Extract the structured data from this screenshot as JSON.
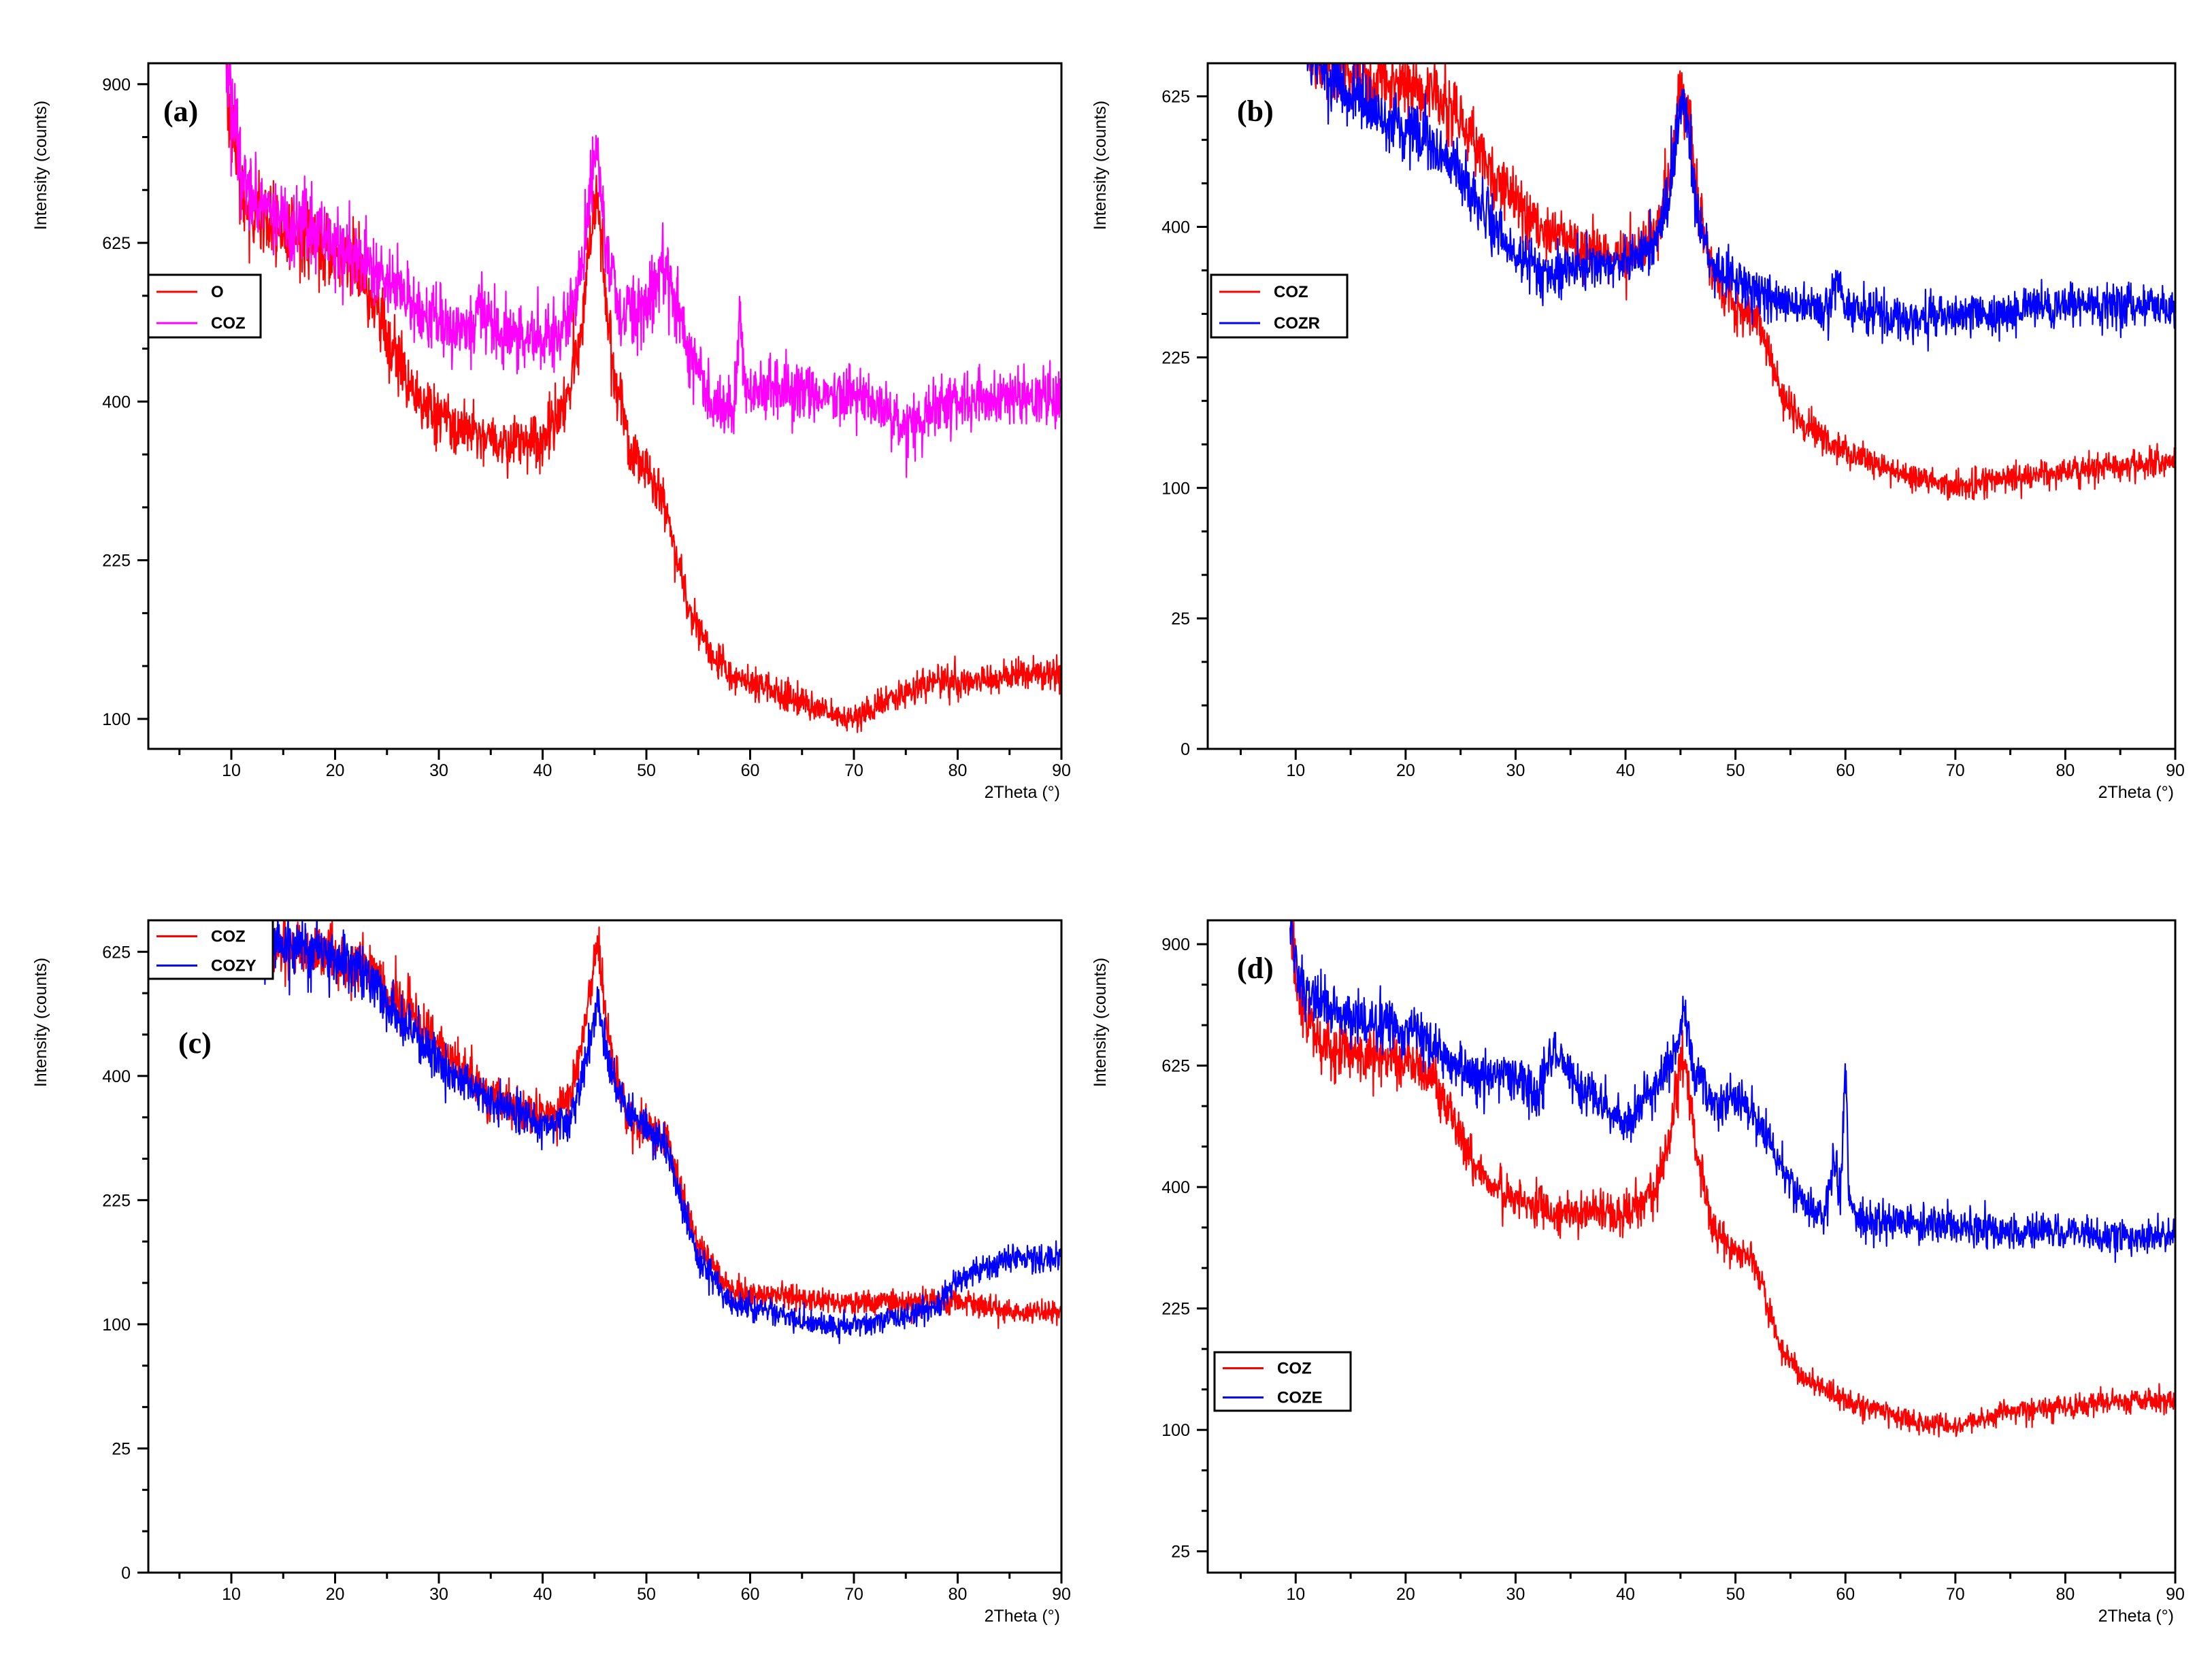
{
  "chart_data": [
    {
      "panel": "(a)",
      "type": "line",
      "xlabel": "2Theta (°)",
      "ylabel": "Intensity (counts)",
      "xlim": [
        2,
        90
      ],
      "ylim": [
        82,
        940
      ],
      "y_scale": "sqrt",
      "xticks": [
        10,
        20,
        30,
        40,
        50,
        60,
        70,
        80,
        90
      ],
      "yticks": [
        100,
        225,
        400,
        625,
        900
      ],
      "legend": {
        "position": "upper-left-mid",
        "entries": [
          "O",
          "COZ"
        ]
      },
      "grid": false,
      "series": [
        {
          "name": "O",
          "color": "#ff0000",
          "noise": 0.045,
          "x": [
            9.5,
            10,
            11,
            13,
            15,
            18,
            22,
            24,
            26,
            28,
            30,
            33,
            36,
            40,
            42,
            43.5,
            44.5,
            45.2,
            46,
            47,
            48.5,
            50,
            51.5,
            52.5,
            54,
            56,
            58,
            62,
            66,
            70,
            74,
            78,
            82,
            86,
            90
          ],
          "y": [
            940,
            820,
            700,
            650,
            640,
            625,
            590,
            530,
            450,
            400,
            380,
            360,
            350,
            355,
            390,
            470,
            620,
            700,
            560,
            420,
            340,
            320,
            290,
            250,
            180,
            150,
            130,
            120,
            108,
            100,
            115,
            125,
            125,
            130,
            130
          ]
        },
        {
          "name": "COZ",
          "color": "#ff00ff",
          "noise": 0.045,
          "x": [
            9.5,
            10,
            11,
            12,
            14,
            17,
            20,
            23,
            26,
            30,
            33,
            34,
            35,
            36,
            40,
            43,
            44.3,
            45.2,
            46,
            47.5,
            50,
            51.5,
            52.5,
            54,
            56,
            58.5,
            59,
            59.5,
            61,
            65,
            70,
            75,
            80,
            85,
            90
          ],
          "y": [
            940,
            860,
            750,
            700,
            670,
            650,
            625,
            590,
            550,
            510,
            490,
            540,
            500,
            490,
            480,
            520,
            650,
            790,
            640,
            520,
            520,
            590,
            560,
            470,
            400,
            390,
            520,
            410,
            420,
            410,
            410,
            370,
            400,
            410,
            400
          ]
        }
      ]
    },
    {
      "panel": "(b)",
      "type": "line",
      "xlabel": "2Theta (°)",
      "ylabel": "Intensity (counts)",
      "xlim": [
        2,
        90
      ],
      "ylim": [
        0,
        690
      ],
      "y_scale": "sqrt",
      "xticks": [
        10,
        20,
        30,
        40,
        50,
        60,
        70,
        80,
        90
      ],
      "yticks": [
        0,
        25,
        100,
        225,
        400,
        625
      ],
      "legend": {
        "position": "upper-left-mid",
        "entries": [
          "COZ",
          "COZR"
        ]
      },
      "grid": false,
      "series": [
        {
          "name": "COZ",
          "color": "#ff0000",
          "noise": 0.05,
          "x": [
            11,
            13,
            16,
            19,
            22,
            25,
            28,
            32,
            36,
            40,
            42.5,
            44,
            45,
            45.7,
            46.5,
            48,
            50,
            51.5,
            52.5,
            54,
            56,
            60,
            65,
            70,
            75,
            80,
            85,
            90
          ],
          "y": [
            710,
            690,
            660,
            650,
            640,
            580,
            480,
            400,
            370,
            350,
            380,
            470,
            640,
            600,
            450,
            330,
            285,
            280,
            250,
            190,
            155,
            130,
            110,
            100,
            108,
            112,
            118,
            122
          ]
        },
        {
          "name": "COZR",
          "color": "#0000ff",
          "noise": 0.05,
          "x": [
            11,
            13,
            16,
            19,
            22,
            25,
            28,
            30,
            33,
            36,
            40,
            42.5,
            44,
            45,
            45.7,
            46.5,
            48,
            50,
            52,
            55,
            58.5,
            59.2,
            60,
            62,
            65,
            70,
            75,
            80,
            85,
            90
          ],
          "y": [
            710,
            660,
            610,
            580,
            540,
            480,
            400,
            360,
            330,
            340,
            350,
            370,
            450,
            620,
            570,
            420,
            340,
            320,
            305,
            290,
            280,
            330,
            285,
            280,
            270,
            275,
            280,
            290,
            290,
            285
          ]
        }
      ]
    },
    {
      "panel": "(c)",
      "type": "line",
      "xlabel": "2Theta (°)",
      "ylabel": "Intensity (counts)",
      "xlim": [
        2,
        90
      ],
      "ylim": [
        0,
        690
      ],
      "y_scale": "sqrt",
      "xticks": [
        10,
        20,
        30,
        40,
        50,
        60,
        70,
        80,
        90
      ],
      "yticks": [
        0,
        25,
        100,
        225,
        400,
        625
      ],
      "legend": {
        "position": "top-left",
        "entries": [
          "COZ",
          "COZY"
        ]
      },
      "grid": false,
      "series": [
        {
          "name": "COZ",
          "color": "#ff0000",
          "noise": 0.045,
          "x": [
            13,
            16,
            20,
            23,
            26,
            30,
            34,
            38,
            41,
            43,
            44.3,
            45.2,
            46,
            47,
            48.5,
            50,
            52,
            53,
            55,
            58,
            62,
            66,
            70,
            74,
            78,
            82,
            86,
            90
          ],
          "y": [
            640,
            630,
            610,
            600,
            530,
            450,
            380,
            340,
            340,
            380,
            520,
            640,
            520,
            400,
            330,
            320,
            300,
            250,
            170,
            130,
            125,
            120,
            118,
            118,
            120,
            115,
            110,
            110
          ]
        },
        {
          "name": "COZY",
          "color": "#0000ff",
          "noise": 0.045,
          "x": [
            13,
            16,
            20,
            23,
            26,
            30,
            34,
            38,
            41,
            43,
            44.3,
            45.2,
            46,
            47,
            48.5,
            50,
            52,
            53,
            55,
            58,
            62,
            66,
            70,
            74,
            78,
            80,
            82,
            86,
            90
          ],
          "y": [
            640,
            640,
            610,
            590,
            500,
            420,
            370,
            340,
            320,
            340,
            440,
            520,
            450,
            380,
            340,
            320,
            290,
            240,
            160,
            120,
            110,
            100,
            100,
            105,
            115,
            140,
            150,
            160,
            160
          ]
        }
      ]
    },
    {
      "panel": "(d)",
      "type": "line",
      "xlabel": "2Theta (°)",
      "ylabel": "Intensity (counts)",
      "xlim": [
        2,
        90
      ],
      "ylim": [
        17,
        960
      ],
      "y_scale": "sqrt",
      "xticks": [
        10,
        20,
        30,
        40,
        50,
        60,
        70,
        80,
        90
      ],
      "yticks": [
        25,
        100,
        225,
        400,
        625,
        900
      ],
      "legend": {
        "position": "lower-left-mid",
        "entries": [
          "COZ",
          "COZE"
        ]
      },
      "grid": false,
      "series": [
        {
          "name": "COZ",
          "color": "#ff0000",
          "noise": 0.045,
          "x": [
            9.5,
            10,
            11,
            13,
            16,
            20,
            22,
            24,
            26,
            28,
            30,
            33,
            37,
            40,
            42.5,
            44,
            45,
            45.6,
            46.5,
            48,
            50,
            51.5,
            52.5,
            54,
            56,
            60,
            65,
            70,
            75,
            80,
            85,
            90
          ],
          "y": [
            960,
            820,
            720,
            660,
            650,
            640,
            610,
            530,
            450,
            400,
            380,
            360,
            355,
            360,
            390,
            470,
            640,
            600,
            450,
            330,
            300,
            290,
            250,
            180,
            150,
            125,
            110,
            102,
            115,
            120,
            125,
            125
          ]
        },
        {
          "name": "COZE",
          "color": "#0000ff",
          "noise": 0.04,
          "x": [
            9.5,
            10,
            11,
            13,
            16,
            20,
            23,
            26,
            30,
            32,
            33.2,
            34,
            35,
            36,
            38,
            40,
            42,
            44,
            45.3,
            46.5,
            48,
            50,
            52,
            54,
            56,
            58,
            59,
            59.5,
            60,
            60.3,
            61,
            63,
            66,
            70,
            75,
            80,
            85,
            90
          ],
          "y": [
            960,
            860,
            790,
            750,
            720,
            700,
            660,
            610,
            600,
            560,
            660,
            640,
            610,
            580,
            540,
            510,
            560,
            620,
            730,
            600,
            540,
            560,
            520,
            440,
            380,
            350,
            450,
            380,
            620,
            400,
            350,
            345,
            345,
            340,
            330,
            330,
            320,
            320
          ]
        }
      ]
    }
  ]
}
